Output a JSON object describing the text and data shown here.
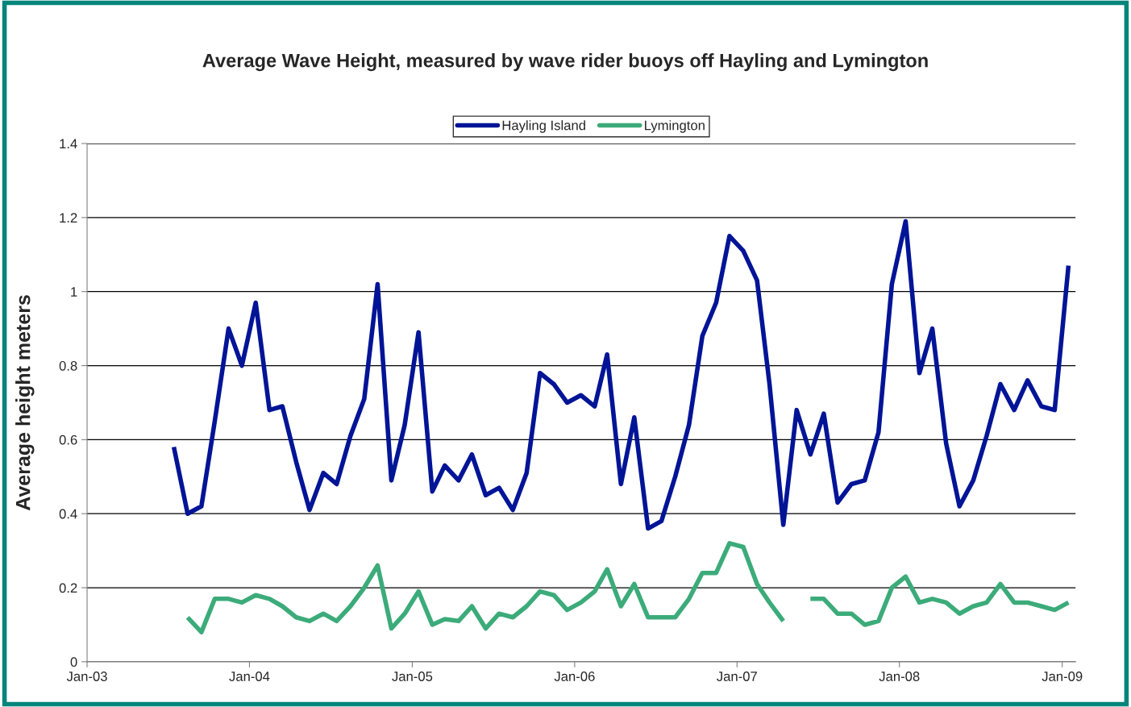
{
  "chart_data": {
    "type": "line",
    "title": "Average Wave Height, measured by wave rider buoys off Hayling and Lymington",
    "ylabel": "Average height meters",
    "x": [
      "2003-07-15",
      "2003-08-15",
      "2003-09-15",
      "2003-10-15",
      "2003-11-15",
      "2003-12-15",
      "2004-01-15",
      "2004-02-15",
      "2004-03-15",
      "2004-04-15",
      "2004-05-15",
      "2004-06-15",
      "2004-07-15",
      "2004-08-15",
      "2004-09-15",
      "2004-10-15",
      "2004-11-15",
      "2004-12-15",
      "2005-01-15",
      "2005-02-15",
      "2005-03-15",
      "2005-04-15",
      "2005-05-15",
      "2005-06-15",
      "2005-07-15",
      "2005-08-15",
      "2005-09-15",
      "2005-10-15",
      "2005-11-15",
      "2005-12-15",
      "2006-01-15",
      "2006-02-15",
      "2006-03-15",
      "2006-04-15",
      "2006-05-15",
      "2006-06-15",
      "2006-07-15",
      "2006-08-15",
      "2006-09-15",
      "2006-10-15",
      "2006-11-15",
      "2006-12-15",
      "2007-01-15",
      "2007-02-15",
      "2007-03-15",
      "2007-04-15",
      "2007-05-15",
      "2007-06-15",
      "2007-07-15",
      "2007-08-15",
      "2007-09-15",
      "2007-10-15",
      "2007-11-15",
      "2007-12-15",
      "2008-01-15",
      "2008-02-15",
      "2008-03-15",
      "2008-04-15",
      "2008-05-15",
      "2008-06-15",
      "2008-07-15",
      "2008-08-15",
      "2008-09-15",
      "2008-10-15",
      "2008-11-15",
      "2008-12-15",
      "2009-01-15"
    ],
    "series": [
      {
        "name": "Hayling Island",
        "color": "#001496",
        "values": [
          0.58,
          0.4,
          0.42,
          0.65,
          0.9,
          0.8,
          0.97,
          0.68,
          0.69,
          0.54,
          0.41,
          0.51,
          0.48,
          0.61,
          0.71,
          1.02,
          0.49,
          0.64,
          0.89,
          0.46,
          0.53,
          0.49,
          0.56,
          0.45,
          0.47,
          0.41,
          0.51,
          0.78,
          0.75,
          0.7,
          0.72,
          0.69,
          0.83,
          0.48,
          0.66,
          0.36,
          0.38,
          0.5,
          0.64,
          0.88,
          0.97,
          1.15,
          1.11,
          1.03,
          0.75,
          0.37,
          0.68,
          0.56,
          0.67,
          0.43,
          0.48,
          0.49,
          0.62,
          1.02,
          1.19,
          0.78,
          0.9,
          0.59,
          0.42,
          0.49,
          0.61,
          0.75,
          0.68,
          0.76,
          0.69,
          0.68,
          1.07
        ]
      },
      {
        "name": "Lymington",
        "color": "#3cab7a",
        "values": [
          null,
          0.12,
          0.08,
          0.17,
          0.17,
          0.16,
          0.18,
          0.17,
          0.15,
          0.12,
          0.11,
          0.13,
          0.11,
          0.15,
          0.2,
          0.26,
          0.09,
          0.13,
          0.19,
          0.1,
          0.115,
          0.11,
          0.15,
          0.09,
          0.13,
          0.12,
          0.15,
          0.19,
          0.18,
          0.14,
          0.16,
          0.19,
          0.25,
          0.15,
          0.21,
          0.12,
          0.12,
          0.12,
          0.17,
          0.24,
          0.24,
          0.32,
          0.31,
          0.21,
          0.16,
          0.11,
          null,
          0.17,
          0.17,
          0.13,
          0.13,
          0.1,
          0.11,
          0.2,
          0.23,
          0.16,
          0.17,
          0.16,
          0.13,
          0.15,
          0.16,
          0.21,
          0.16,
          0.16,
          0.15,
          0.14,
          0.16
        ]
      }
    ],
    "xlim": [
      "2003-01-01",
      "2009-01-31"
    ],
    "xticks": [
      {
        "value": "2003-01-01",
        "label": "Jan-03"
      },
      {
        "value": "2004-01-01",
        "label": "Jan-04"
      },
      {
        "value": "2005-01-01",
        "label": "Jan-05"
      },
      {
        "value": "2006-01-01",
        "label": "Jan-06"
      },
      {
        "value": "2007-01-01",
        "label": "Jan-07"
      },
      {
        "value": "2008-01-01",
        "label": "Jan-08"
      },
      {
        "value": "2009-01-01",
        "label": "Jan-09"
      }
    ],
    "ylim": [
      0,
      1.4
    ],
    "yticks": [
      0,
      0.2,
      0.4,
      0.6,
      0.8,
      1,
      1.2,
      1.4
    ],
    "grid": "y",
    "legend": "top",
    "marker": "none",
    "line_style": "solid"
  }
}
